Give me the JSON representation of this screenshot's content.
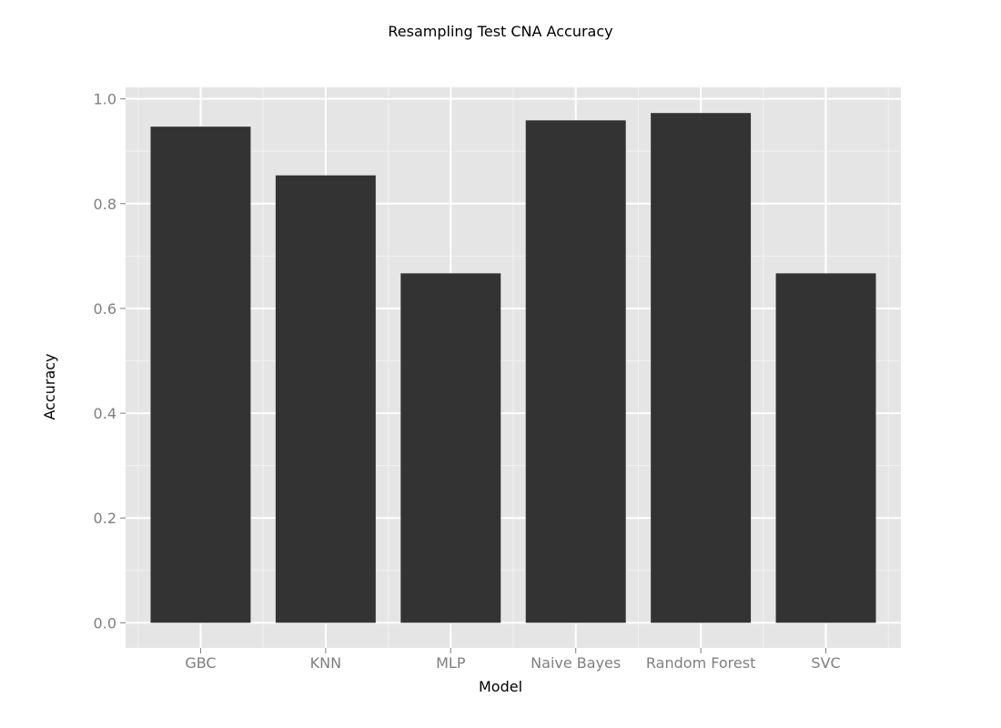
{
  "chart_data": {
    "type": "bar",
    "title": "Resampling Test CNA Accuracy",
    "xlabel": "Model",
    "ylabel": "Accuracy",
    "categories": [
      "GBC",
      "KNN",
      "MLP",
      "Naive Bayes",
      "Random Forest",
      "SVC"
    ],
    "values": [
      0.947,
      0.854,
      0.667,
      0.959,
      0.973,
      0.667
    ],
    "ylim": [
      -0.048,
      1.022
    ],
    "yticks": [
      0.0,
      0.2,
      0.4,
      0.6,
      0.8,
      1.0
    ],
    "ytick_labels": [
      "0.0",
      "0.2",
      "0.4",
      "0.6",
      "0.8",
      "1.0"
    ],
    "grid": true,
    "legend": "none",
    "colors": {
      "panel_background": "#e5e5e5",
      "grid_major": "#ffffff",
      "grid_minor": "#f2f2f2",
      "bar_fill": "#333333",
      "tick_text": "#7f7f7f"
    }
  }
}
